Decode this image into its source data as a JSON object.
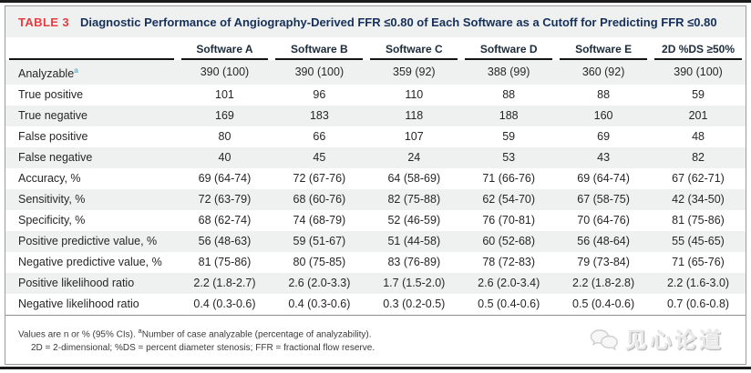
{
  "table": {
    "tag": "TABLE 3",
    "title": "Diagnostic Performance of Angiography-Derived FFR ≤0.80 of Each Software as a Cutoff for Predicting FFR ≤0.80",
    "columns": [
      "",
      "Software A",
      "Software B",
      "Software C",
      "Software D",
      "Software E",
      "2D %DS ≥50%"
    ],
    "rows": [
      {
        "label": "Analyzable",
        "sup": "a",
        "values": [
          "390 (100)",
          "390 (100)",
          "359 (92)",
          "388 (99)",
          "360 (92)",
          "390 (100)"
        ]
      },
      {
        "label": "True positive",
        "values": [
          "101",
          "96",
          "110",
          "88",
          "88",
          "59"
        ]
      },
      {
        "label": "True negative",
        "values": [
          "169",
          "183",
          "118",
          "188",
          "160",
          "201"
        ]
      },
      {
        "label": "False positive",
        "values": [
          "80",
          "66",
          "107",
          "59",
          "69",
          "48"
        ]
      },
      {
        "label": "False negative",
        "values": [
          "40",
          "45",
          "24",
          "53",
          "43",
          "82"
        ]
      },
      {
        "label": "Accuracy, %",
        "values": [
          "69 (64-74)",
          "72 (67-76)",
          "64 (58-69)",
          "71 (66-76)",
          "69 (64-74)",
          "67 (62-71)"
        ]
      },
      {
        "label": "Sensitivity, %",
        "values": [
          "72 (63-79)",
          "68 (60-76)",
          "82 (75-88)",
          "62 (54-70)",
          "67 (58-75)",
          "42 (34-50)"
        ]
      },
      {
        "label": "Specificity, %",
        "values": [
          "68 (62-74)",
          "74 (68-79)",
          "52 (46-59)",
          "76 (70-81)",
          "70 (64-76)",
          "81 (75-86)"
        ]
      },
      {
        "label": "Positive predictive value, %",
        "values": [
          "56 (48-63)",
          "59 (51-67)",
          "51 (44-58)",
          "60 (52-68)",
          "56 (48-64)",
          "55 (45-65)"
        ]
      },
      {
        "label": "Negative predictive value, %",
        "values": [
          "81 (75-86)",
          "80 (75-85)",
          "83 (76-89)",
          "78 (72-83)",
          "79 (73-84)",
          "71 (65-76)"
        ]
      },
      {
        "label": "Positive likelihood ratio",
        "values": [
          "2.2 (1.8-2.7)",
          "2.6 (2.0-3.3)",
          "1.7 (1.5-2.0)",
          "2.6 (2.0-3.4)",
          "2.2 (1.8-2.8)",
          "2.2 (1.6-3.0)"
        ]
      },
      {
        "label": "Negative likelihood ratio",
        "values": [
          "0.4 (0.3-0.6)",
          "0.4 (0.3-0.6)",
          "0.3 (0.2-0.5)",
          "0.5 (0.4-0.6)",
          "0.5 (0.4-0.6)",
          "0.7 (0.6-0.8)"
        ]
      }
    ],
    "footnote1": {
      "pre": "Values are n or % (95% CIs). ",
      "sup": "a",
      "post": "Number of case analyzable (percentage of analyzability)."
    },
    "footnote2": "2D = 2-dimensional; %DS = percent diameter stenosis; FFR = fractional flow reserve."
  },
  "watermark": {
    "text": "见心论道",
    "logo": "speech-bubbles-logo"
  },
  "colors": {
    "red": "#e43d40",
    "navy": "#17305a",
    "stripe": "#eef1f0",
    "supblue": "#6aafc8",
    "wmgray": "#e9e9e9"
  }
}
